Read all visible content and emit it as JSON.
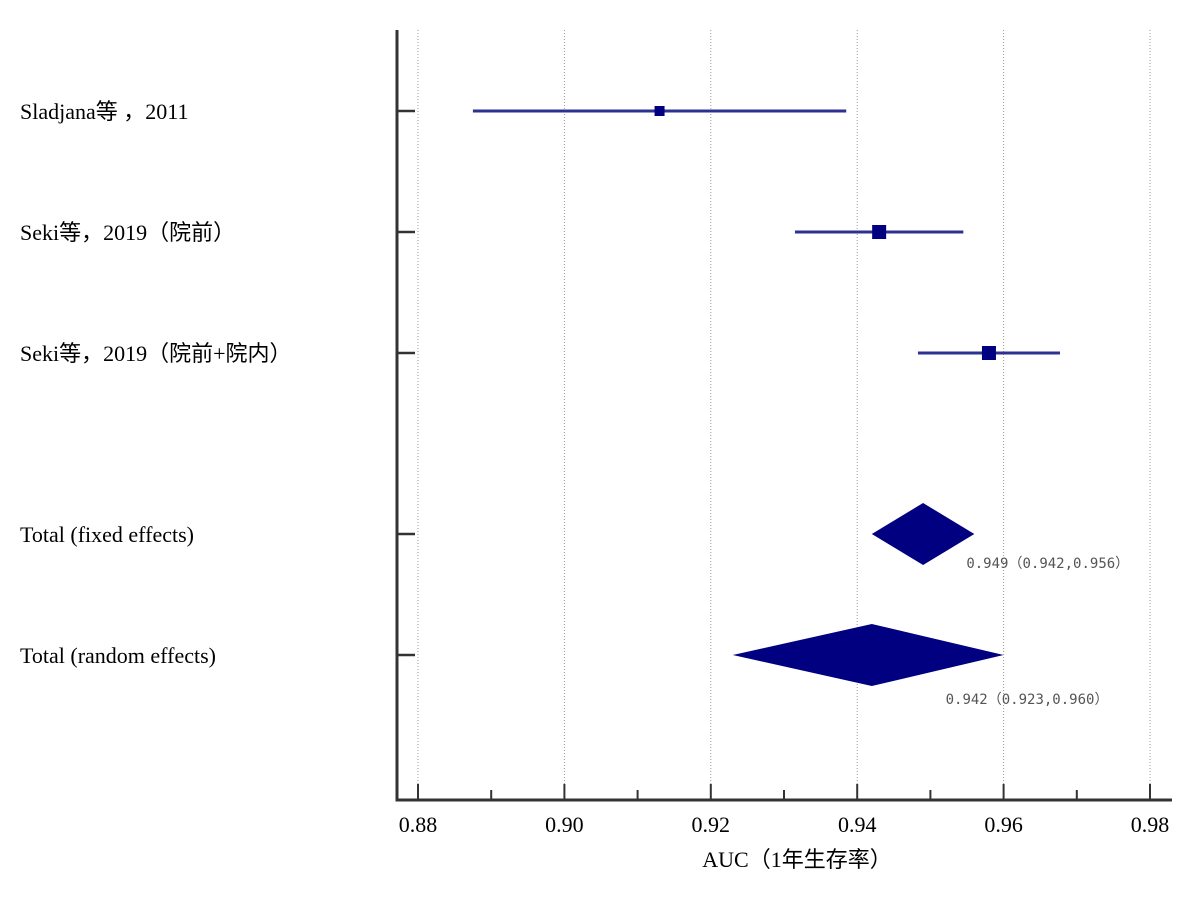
{
  "chart_data": {
    "type": "forest",
    "xlabel": "AUC（1年生存率）",
    "xlim": [
      0.88,
      0.98
    ],
    "xticks": [
      "0.88",
      "0.90",
      "0.92",
      "0.94",
      "0.96",
      "0.98"
    ],
    "grid": true,
    "colors": {
      "marker": "#000080",
      "ci_line": "#2e3192",
      "axis": "#333333",
      "grid": "#999999"
    },
    "studies": [
      {
        "label": "Sladjana等 ，2011",
        "auc": 0.913,
        "lo": 0.8875,
        "hi": 0.9385,
        "size": "small"
      },
      {
        "label": "Seki等，2019（院前）",
        "auc": 0.943,
        "lo": 0.9315,
        "hi": 0.9545,
        "size": "medium"
      },
      {
        "label": "Seki等，2019（院前+院内）",
        "auc": 0.958,
        "lo": 0.9483,
        "hi": 0.9677,
        "size": "medium"
      }
    ],
    "pooled": [
      {
        "label": "Total (fixed effects)",
        "auc": 0.949,
        "lo": 0.942,
        "hi": 0.956,
        "annotation": "0.949（0.942,0.956）"
      },
      {
        "label": "Total (random effects)",
        "auc": 0.942,
        "lo": 0.923,
        "hi": 0.96,
        "annotation": "0.942（0.923,0.960）"
      }
    ]
  }
}
